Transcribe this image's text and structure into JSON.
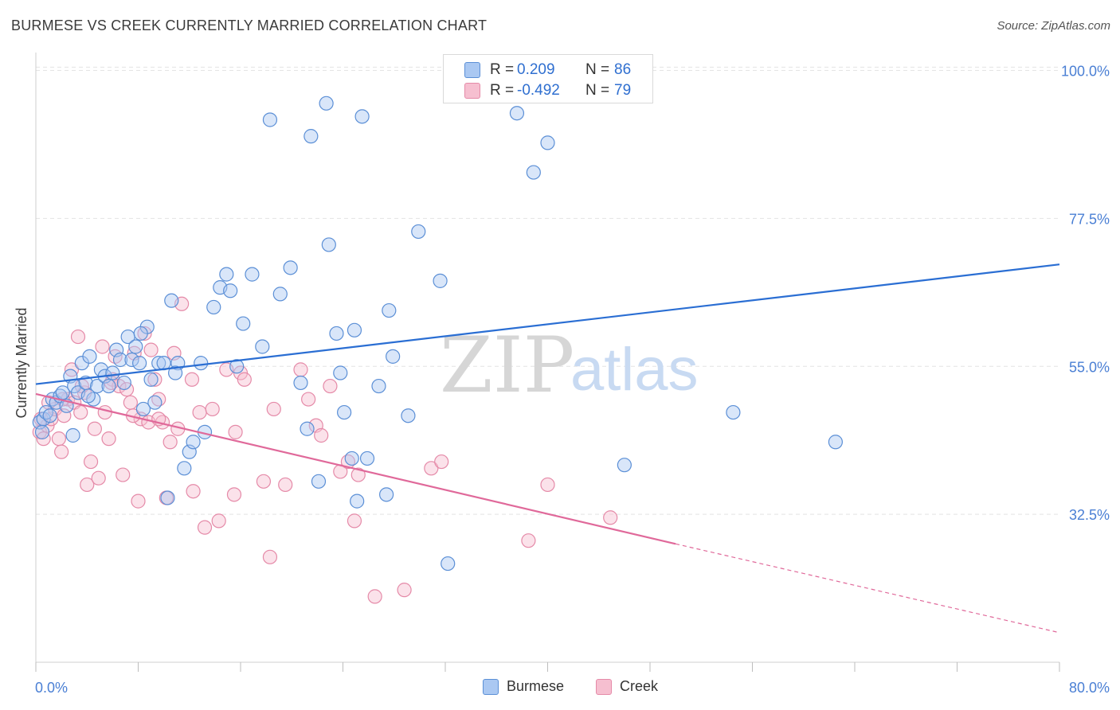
{
  "title": "BURMESE VS CREEK CURRENTLY MARRIED CORRELATION CHART",
  "source": "Source: ZipAtlas.com",
  "watermark": {
    "zip": "ZIP",
    "atlas": "atlas"
  },
  "colors": {
    "burmese_fill": "#aac8f2",
    "burmese_stroke": "#5b8fd6",
    "burmese_line": "#2a6ed3",
    "creek_fill": "#f6bfd0",
    "creek_stroke": "#e58aa8",
    "creek_line": "#e0699a",
    "tick_label": "#4a7fd4",
    "grid": "#e4e4e4"
  },
  "stats": [
    {
      "swatch": "burmese",
      "r_label": "R =",
      "r_value": "0.209",
      "n_label": "N =",
      "n_value": "86"
    },
    {
      "swatch": "creek",
      "r_label": "R =",
      "r_value": "-0.492",
      "n_label": "N =",
      "n_value": "79"
    }
  ],
  "legend": [
    {
      "key": "burmese",
      "label": "Burmese"
    },
    {
      "key": "creek",
      "label": "Creek"
    }
  ],
  "chart_data": {
    "type": "scatter",
    "title": "BURMESE VS CREEK CURRENTLY MARRIED CORRELATION CHART",
    "xlabel": "",
    "ylabel": "Currently Married",
    "xlim": [
      0,
      80
    ],
    "ylim": [
      10,
      102
    ],
    "x_tick_labels": [
      "0.0%",
      "80.0%"
    ],
    "y_ticks": [
      32.5,
      55.0,
      77.5,
      100.0
    ],
    "y_tick_labels": [
      "32.5%",
      "55.0%",
      "77.5%",
      "100.0%"
    ],
    "grid": true,
    "legend_position": "bottom-center",
    "series": [
      {
        "name": "Burmese",
        "trend": {
          "x": [
            0,
            80
          ],
          "y": [
            52.3,
            70.5
          ],
          "style": "solid"
        },
        "points": [
          [
            0.3,
            46.5
          ],
          [
            0.6,
            47
          ],
          [
            0.8,
            48
          ],
          [
            1.1,
            47.5
          ],
          [
            1.3,
            50
          ],
          [
            1.6,
            49.5
          ],
          [
            1.9,
            50.5
          ],
          [
            2.1,
            51
          ],
          [
            2.4,
            49
          ],
          [
            2.7,
            53.5
          ],
          [
            3.0,
            52
          ],
          [
            3.3,
            51
          ],
          [
            3.6,
            55.5
          ],
          [
            3.9,
            52.5
          ],
          [
            4.2,
            56.5
          ],
          [
            4.5,
            50
          ],
          [
            4.8,
            52
          ],
          [
            5.1,
            54.5
          ],
          [
            5.4,
            53.5
          ],
          [
            5.7,
            52
          ],
          [
            6.0,
            54
          ],
          [
            6.3,
            57.5
          ],
          [
            6.6,
            56
          ],
          [
            6.9,
            52.5
          ],
          [
            7.2,
            59.5
          ],
          [
            7.5,
            56
          ],
          [
            7.8,
            58
          ],
          [
            8.1,
            55.5
          ],
          [
            8.4,
            48.5
          ],
          [
            8.7,
            61
          ],
          [
            9.0,
            53
          ],
          [
            9.3,
            49.5
          ],
          [
            9.6,
            55.5
          ],
          [
            10.0,
            55.5
          ],
          [
            10.3,
            35
          ],
          [
            10.6,
            65
          ],
          [
            11.1,
            55.5
          ],
          [
            11.6,
            39.5
          ],
          [
            12.0,
            42
          ],
          [
            12.3,
            43.5
          ],
          [
            12.9,
            55.5
          ],
          [
            13.2,
            45
          ],
          [
            13.9,
            64
          ],
          [
            14.4,
            67
          ],
          [
            14.9,
            69
          ],
          [
            15.2,
            66.5
          ],
          [
            15.7,
            55
          ],
          [
            16.2,
            61.5
          ],
          [
            16.9,
            69
          ],
          [
            17.7,
            58
          ],
          [
            18.3,
            92.5
          ],
          [
            19.1,
            66
          ],
          [
            19.9,
            70
          ],
          [
            20.7,
            52.5
          ],
          [
            21.2,
            45.5
          ],
          [
            21.5,
            90
          ],
          [
            22.1,
            37.5
          ],
          [
            22.7,
            95
          ],
          [
            22.9,
            73.5
          ],
          [
            23.5,
            60
          ],
          [
            23.8,
            54
          ],
          [
            24.1,
            48
          ],
          [
            24.7,
            41
          ],
          [
            24.9,
            60.5
          ],
          [
            25.1,
            34.5
          ],
          [
            25.5,
            93
          ],
          [
            25.9,
            41
          ],
          [
            26.8,
            52
          ],
          [
            27.4,
            35.5
          ],
          [
            27.6,
            63.5
          ],
          [
            27.9,
            56.5
          ],
          [
            29.1,
            47.5
          ],
          [
            29.9,
            75.5
          ],
          [
            31.6,
            68
          ],
          [
            32.2,
            25
          ],
          [
            37.6,
            93.5
          ],
          [
            38.9,
            84.5
          ],
          [
            40.0,
            89
          ],
          [
            46.0,
            40
          ],
          [
            54.5,
            48
          ],
          [
            62.5,
            43.5
          ],
          [
            0.5,
            45
          ],
          [
            2.9,
            44.5
          ],
          [
            10.9,
            54
          ],
          [
            4.1,
            50.5
          ],
          [
            8.2,
            60
          ]
        ]
      },
      {
        "name": "Creek",
        "trend": {
          "x": [
            0,
            50
          ],
          "y": [
            50.8,
            28
          ],
          "style": "solid",
          "dashed_extension": {
            "x": [
              50,
              80
            ],
            "y": [
              28,
              14.5
            ]
          }
        },
        "points": [
          [
            0.3,
            45
          ],
          [
            0.6,
            44
          ],
          [
            0.9,
            46
          ],
          [
            1.2,
            47
          ],
          [
            1.5,
            48.5
          ],
          [
            1.8,
            44
          ],
          [
            2.0,
            42
          ],
          [
            2.2,
            47.5
          ],
          [
            2.5,
            50
          ],
          [
            2.8,
            54.5
          ],
          [
            3.0,
            49.5
          ],
          [
            3.3,
            59.5
          ],
          [
            3.5,
            48
          ],
          [
            3.8,
            51
          ],
          [
            4.0,
            37
          ],
          [
            4.3,
            40.5
          ],
          [
            4.6,
            45.5
          ],
          [
            4.9,
            38
          ],
          [
            5.2,
            58
          ],
          [
            5.4,
            48
          ],
          [
            5.7,
            44
          ],
          [
            6.0,
            53
          ],
          [
            6.2,
            56.5
          ],
          [
            6.5,
            52
          ],
          [
            6.8,
            38.5
          ],
          [
            7.1,
            51.5
          ],
          [
            7.4,
            49.5
          ],
          [
            7.7,
            57
          ],
          [
            8.0,
            34.5
          ],
          [
            8.2,
            47
          ],
          [
            8.5,
            60
          ],
          [
            8.8,
            46.5
          ],
          [
            9.0,
            57.5
          ],
          [
            9.3,
            53
          ],
          [
            9.6,
            50
          ],
          [
            9.9,
            46.5
          ],
          [
            10.2,
            35
          ],
          [
            10.5,
            43.5
          ],
          [
            10.8,
            57
          ],
          [
            11.1,
            45.5
          ],
          [
            11.4,
            64.5
          ],
          [
            12.3,
            36
          ],
          [
            12.8,
            48
          ],
          [
            13.2,
            30.5
          ],
          [
            13.8,
            48.5
          ],
          [
            14.3,
            31.5
          ],
          [
            14.9,
            54.5
          ],
          [
            15.5,
            35.5
          ],
          [
            15.6,
            45
          ],
          [
            16.0,
            54
          ],
          [
            16.3,
            53
          ],
          [
            17.8,
            37.5
          ],
          [
            18.3,
            26
          ],
          [
            18.6,
            48.5
          ],
          [
            19.5,
            37
          ],
          [
            20.7,
            54.5
          ],
          [
            21.3,
            50
          ],
          [
            21.9,
            46
          ],
          [
            22.3,
            44.5
          ],
          [
            23.0,
            52
          ],
          [
            23.8,
            39
          ],
          [
            24.4,
            40.5
          ],
          [
            24.9,
            31.5
          ],
          [
            25.2,
            38.5
          ],
          [
            26.5,
            20
          ],
          [
            28.8,
            21
          ],
          [
            30.9,
            39.5
          ],
          [
            31.7,
            40.5
          ],
          [
            38.5,
            28.5
          ],
          [
            40.0,
            37
          ],
          [
            44.9,
            32
          ],
          [
            1.0,
            49.5
          ],
          [
            3.6,
            52
          ],
          [
            7.6,
            47.5
          ],
          [
            5.9,
            52.5
          ],
          [
            9.6,
            47
          ],
          [
            12.2,
            53
          ],
          [
            2.1,
            50
          ],
          [
            0.4,
            47
          ]
        ]
      }
    ]
  }
}
